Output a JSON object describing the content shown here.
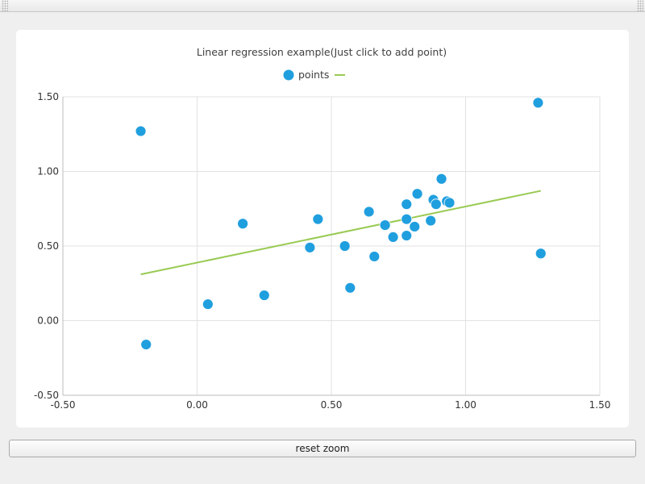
{
  "window": {
    "reset_zoom_label": "reset zoom"
  },
  "chart_data": {
    "type": "scatter",
    "title": "Linear regression example(Just click to add point)",
    "xlabel": "",
    "ylabel": "",
    "xlim": [
      -0.5,
      1.5
    ],
    "ylim": [
      -0.5,
      1.5
    ],
    "x_ticks": [
      "-0.50",
      "0.00",
      "0.50",
      "1.00",
      "1.50"
    ],
    "y_ticks": [
      "1.50",
      "1.00",
      "0.50",
      "0.00",
      "-0.50"
    ],
    "x_tick_values": [
      -0.5,
      0.0,
      0.5,
      1.0,
      1.5
    ],
    "y_tick_values": [
      1.5,
      1.0,
      0.5,
      0.0,
      -0.5
    ],
    "grid": true,
    "legend_position": "top-center",
    "series": [
      {
        "name": "points",
        "kind": "scatter",
        "color": "#209fdf",
        "points": [
          [
            -0.21,
            1.27
          ],
          [
            -0.19,
            -0.16
          ],
          [
            0.04,
            0.11
          ],
          [
            0.17,
            0.65
          ],
          [
            0.25,
            0.17
          ],
          [
            0.42,
            0.49
          ],
          [
            0.45,
            0.68
          ],
          [
            0.55,
            0.5
          ],
          [
            0.57,
            0.22
          ],
          [
            0.64,
            0.73
          ],
          [
            0.66,
            0.43
          ],
          [
            0.7,
            0.64
          ],
          [
            0.73,
            0.56
          ],
          [
            0.78,
            0.78
          ],
          [
            0.78,
            0.57
          ],
          [
            0.78,
            0.68
          ],
          [
            0.81,
            0.63
          ],
          [
            0.82,
            0.85
          ],
          [
            0.87,
            0.67
          ],
          [
            0.88,
            0.81
          ],
          [
            0.89,
            0.78
          ],
          [
            0.91,
            0.95
          ],
          [
            0.93,
            0.8
          ],
          [
            0.94,
            0.79
          ],
          [
            1.27,
            1.46
          ],
          [
            1.28,
            0.45
          ]
        ]
      },
      {
        "name": "",
        "kind": "line",
        "color": "#99ca53",
        "points": [
          [
            -0.21,
            0.31
          ],
          [
            1.28,
            0.87
          ]
        ]
      }
    ]
  }
}
